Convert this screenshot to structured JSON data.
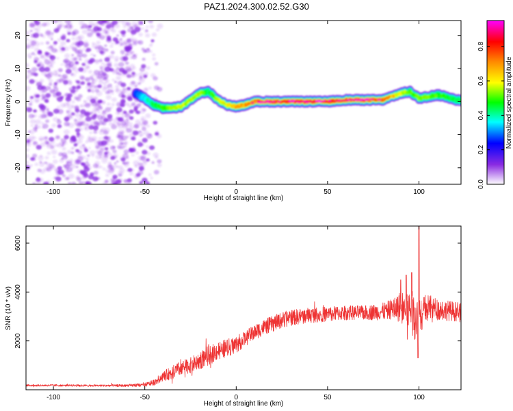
{
  "title": "PAZ1.2024.300.02.52.G30",
  "colors": {
    "snr_line": "#ee3333",
    "noise": "#8a2be2",
    "colormap": [
      "#ffffff",
      "#8a2be2",
      "#0000ff",
      "#00ffff",
      "#00ff00",
      "#ffff00",
      "#ff8800",
      "#ff0000",
      "#ff00ff"
    ]
  },
  "chart_data": [
    {
      "type": "heatmap",
      "xlabel": "Height of straight line (km)",
      "ylabel": "Frequency (Hz)",
      "xlim": [
        -115,
        123
      ],
      "ylim": [
        -25,
        24.5
      ],
      "xticks": [
        -100,
        -50,
        0,
        50,
        100
      ],
      "yticks": [
        -20,
        -10,
        0,
        10,
        20
      ],
      "noise_region_x": [
        -115,
        -45
      ],
      "ridge": {
        "x": [
          -55,
          -50,
          -45,
          -40,
          -35,
          -30,
          -25,
          -20,
          -15,
          -10,
          -5,
          0,
          5,
          10,
          20,
          30,
          40,
          50,
          60,
          70,
          80,
          85,
          90,
          95,
          100,
          105,
          110,
          115,
          120
        ],
        "freq": [
          2.5,
          1.0,
          -1.0,
          -2.0,
          -2.0,
          -1.5,
          0.5,
          2.5,
          3.0,
          0.5,
          -1.0,
          -1.5,
          -1.0,
          0.0,
          0.0,
          0.0,
          0.0,
          0.0,
          0.5,
          0.5,
          0.5,
          1.5,
          2.5,
          3.0,
          1.0,
          1.5,
          2.0,
          1.5,
          0.5
        ],
        "amplitude": [
          0.3,
          0.4,
          0.5,
          0.55,
          0.6,
          0.65,
          0.6,
          0.6,
          0.5,
          0.6,
          0.7,
          0.75,
          0.8,
          0.85,
          0.9,
          0.95,
          0.95,
          0.95,
          0.9,
          0.9,
          0.85,
          0.75,
          0.65,
          0.55,
          0.6,
          0.6,
          0.55,
          0.55,
          0.5
        ]
      },
      "colorbar": {
        "label": "Normalized spectral amplitude",
        "range": [
          0.0,
          0.95
        ],
        "ticks": [
          "0.0",
          "0.2",
          "0.4",
          "0.6",
          "0.8"
        ]
      }
    },
    {
      "type": "line",
      "xlabel": "Height of straight line (km)",
      "ylabel": "SNR (10 * v/v)",
      "xlim": [
        -115,
        123
      ],
      "ylim": [
        0,
        6700
      ],
      "xticks": [
        -100,
        -50,
        0,
        50,
        100
      ],
      "yticks": [
        2000,
        4000,
        6000
      ],
      "series": [
        {
          "x": [
            -115,
            -100,
            -80,
            -60,
            -50,
            -45,
            -40,
            -35,
            -30,
            -25,
            -20,
            -15,
            -10,
            -5,
            0,
            5,
            10,
            15,
            20,
            25,
            30,
            40,
            50,
            60,
            70,
            80,
            85,
            90,
            95,
            97,
            100,
            105,
            110,
            115,
            120,
            123
          ],
          "y": [
            180,
            180,
            170,
            170,
            200,
            300,
            550,
            700,
            900,
            1000,
            1200,
            1400,
            1600,
            1700,
            1850,
            2100,
            2350,
            2550,
            2700,
            2850,
            2950,
            3050,
            3100,
            3150,
            3150,
            3200,
            3300,
            3400,
            3250,
            3000,
            3100,
            3350,
            3300,
            3250,
            3200,
            3150
          ],
          "noise": [
            40,
            40,
            40,
            50,
            80,
            120,
            200,
            280,
            300,
            320,
            380,
            400,
            380,
            380,
            350,
            320,
            320,
            320,
            330,
            330,
            330,
            320,
            310,
            300,
            300,
            350,
            420,
            650,
            900,
            1000,
            850,
            550,
            450,
            420,
            400,
            400
          ]
        }
      ],
      "spikes": [
        {
          "x": 100,
          "y": 6700
        },
        {
          "x": 99.5,
          "y": 1300
        },
        {
          "x": 96,
          "y": 4800
        },
        {
          "x": 93,
          "y": 4700
        },
        {
          "x": 90,
          "y": 4500
        }
      ]
    }
  ]
}
